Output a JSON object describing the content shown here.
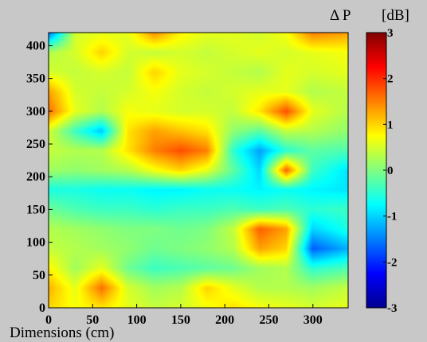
{
  "chart_data": {
    "type": "heatmap",
    "title": "",
    "xlabel": "Dimensions (cm)",
    "ylabel": "",
    "xlim": [
      0,
      340
    ],
    "ylim": [
      0,
      420
    ],
    "xticks": [
      "0",
      "50",
      "100",
      "150",
      "200",
      "250",
      "300"
    ],
    "yticks": [
      "0",
      "50",
      "100",
      "150",
      "200",
      "250",
      "300",
      "350",
      "400"
    ],
    "xtick_values": [
      0,
      50,
      100,
      150,
      200,
      250,
      300
    ],
    "ytick_values": [
      0,
      50,
      100,
      150,
      200,
      250,
      300,
      350,
      400
    ],
    "x": [
      0,
      30,
      60,
      90,
      120,
      150,
      180,
      210,
      240,
      270,
      300,
      340
    ],
    "y": [
      0,
      30,
      60,
      90,
      120,
      150,
      180,
      210,
      240,
      270,
      300,
      330,
      360,
      390,
      420
    ],
    "z": [
      [
        1.0,
        0.7,
        0.9,
        0.6,
        0.4,
        0.5,
        0.7,
        0.9,
        0.7,
        0.6,
        0.5,
        0.6
      ],
      [
        1.2,
        0.6,
        1.6,
        0.5,
        0.2,
        0.3,
        1.0,
        0.6,
        0.3,
        0.3,
        0.2,
        0.4
      ],
      [
        0.8,
        0.2,
        0.6,
        -0.1,
        -0.4,
        -0.3,
        -0.2,
        -0.1,
        0.2,
        0.3,
        -0.5,
        -0.3
      ],
      [
        0.4,
        0.3,
        0.2,
        0.1,
        -0.1,
        0.0,
        0.1,
        0.3,
        1.3,
        1.0,
        -1.7,
        -1.2
      ],
      [
        0.3,
        0.2,
        0.1,
        0.0,
        0.0,
        -0.1,
        0.0,
        0.4,
        1.7,
        1.3,
        -1.0,
        -0.6
      ],
      [
        -0.1,
        -0.3,
        -0.4,
        -0.4,
        -0.5,
        -0.4,
        -0.4,
        -0.3,
        -0.4,
        -0.3,
        -0.5,
        -0.4
      ],
      [
        -0.6,
        -0.6,
        -0.7,
        -0.7,
        -0.8,
        -0.8,
        -0.7,
        -0.7,
        -0.8,
        -0.7,
        -0.8,
        -0.9
      ],
      [
        0.2,
        0.1,
        0.2,
        0.3,
        0.7,
        1.0,
        0.6,
        -0.2,
        -1.0,
        1.7,
        -0.4,
        -0.9
      ],
      [
        0.4,
        0.3,
        0.3,
        0.9,
        1.5,
        1.8,
        1.5,
        -0.5,
        -1.3,
        -0.5,
        -0.2,
        -0.3
      ],
      [
        0.5,
        -0.4,
        -1.1,
        0.9,
        1.3,
        1.1,
        0.9,
        0.1,
        -0.2,
        0.4,
        0.3,
        0.1
      ],
      [
        1.6,
        0.6,
        0.3,
        0.7,
        0.6,
        0.5,
        0.5,
        0.4,
        0.9,
        1.8,
        0.6,
        0.3
      ],
      [
        1.3,
        0.5,
        0.4,
        0.5,
        0.7,
        0.5,
        0.4,
        0.5,
        0.6,
        0.6,
        0.3,
        0.4
      ],
      [
        0.5,
        0.4,
        0.5,
        0.4,
        1.0,
        0.6,
        0.5,
        0.4,
        0.3,
        0.6,
        0.5,
        0.6
      ],
      [
        0.3,
        0.5,
        1.0,
        0.5,
        0.4,
        0.5,
        0.4,
        0.5,
        0.6,
        0.5,
        0.6,
        0.7
      ],
      [
        -1.6,
        0.5,
        0.6,
        0.6,
        1.4,
        0.8,
        0.6,
        0.6,
        0.5,
        0.7,
        1.5,
        1.3
      ]
    ],
    "colorbar": {
      "label_symbol": "Δ P",
      "label_unit": "[dB]",
      "range": [
        -3,
        3
      ],
      "ticks": [
        "-3",
        "-2",
        "-1",
        "0",
        "1",
        "2",
        "3"
      ],
      "tick_values": [
        -3,
        -2,
        -1,
        0,
        1,
        2,
        3
      ],
      "colormap": "jet"
    },
    "grid": false,
    "legend": "colorbar-right"
  }
}
